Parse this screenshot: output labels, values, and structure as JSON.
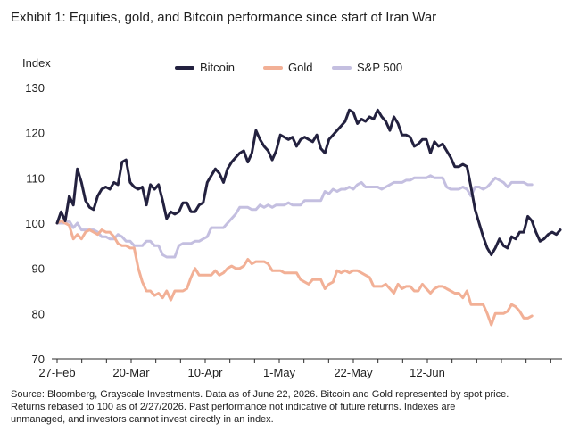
{
  "chart_data": {
    "type": "line",
    "title": "Exhibit 1: Equities, gold, and Bitcoin performance since start of Iran War",
    "ylabel": "Index",
    "xlabel": "",
    "ylim": [
      70,
      130
    ],
    "yticks": [
      70,
      80,
      90,
      100,
      110,
      120,
      130
    ],
    "xticks": [
      "27-Feb",
      "20-Mar",
      "10-Apr",
      "1-May",
      "22-May",
      "12-Jun"
    ],
    "x_start_label": "27-Feb",
    "legend_position": "top",
    "grid": false,
    "series": [
      {
        "name": "Bitcoin",
        "color": "#23213f",
        "values": [
          100,
          102.5,
          100.5,
          106,
          104,
          112,
          109,
          105,
          103.5,
          103,
          106,
          107.5,
          108,
          107.5,
          109,
          108.5,
          113.5,
          114,
          109,
          108,
          107.5,
          108,
          104,
          108.5,
          107.5,
          108.5,
          105,
          101,
          102.5,
          102,
          102.5,
          104.5,
          104.5,
          102.5,
          102.5,
          104,
          104.5,
          109,
          110.5,
          112,
          111,
          109,
          112,
          113.5,
          114.5,
          115.5,
          116,
          113.5,
          115.5,
          120.5,
          118.5,
          117,
          116,
          114,
          116,
          119.5,
          119,
          118.5,
          119,
          117,
          118.5,
          119,
          118.5,
          118,
          119.5,
          116.5,
          115.5,
          118.5,
          119.5,
          120.5,
          121.5,
          122.5,
          125,
          124.5,
          122,
          123,
          122.5,
          123.5,
          123,
          125,
          123.5,
          122.5,
          120.5,
          123.5,
          122,
          119.5,
          119.5,
          119,
          117,
          117.5,
          118.5,
          118.5,
          115.5,
          118,
          117,
          117.5,
          116,
          114.5,
          112.5,
          112.5,
          113,
          112.5,
          108,
          103,
          100,
          97,
          94.5,
          93,
          94.5,
          96.5,
          95,
          94.5,
          97,
          96.5,
          98,
          98,
          101.5,
          100.5,
          98,
          96,
          96.5,
          97.5,
          98,
          97.5,
          98.5
        ]
      },
      {
        "name": "Gold",
        "color": "#f2b096",
        "values": [
          100,
          100.5,
          100,
          99.5,
          96.5,
          97.5,
          96.5,
          98,
          98.5,
          98,
          97.5,
          98.5,
          98,
          98,
          97,
          95.5,
          95,
          95,
          94.5,
          94.5,
          90,
          87,
          85,
          85,
          84,
          84.5,
          83.5,
          85,
          83,
          85,
          85,
          85,
          85.5,
          88,
          90,
          88.5,
          88.5,
          88.5,
          88.5,
          89.5,
          88.5,
          89,
          90,
          90.5,
          90,
          90,
          90.5,
          92,
          91,
          91.5,
          91.5,
          91.5,
          91,
          89.5,
          89.5,
          89.5,
          89,
          89,
          89,
          89,
          87.5,
          87,
          86.5,
          87.5,
          87.5,
          87.5,
          85.5,
          86.5,
          87,
          89.5,
          89,
          89.5,
          89,
          89.5,
          89.5,
          89,
          88.5,
          88,
          86,
          86,
          86,
          86.5,
          85.5,
          84.5,
          86.5,
          85.5,
          86,
          86,
          85,
          85,
          86.5,
          85.5,
          84.5,
          85.5,
          86,
          86,
          85.5,
          85,
          84.5,
          84.5,
          83.5,
          85,
          82,
          82,
          82,
          82,
          80,
          77.5,
          80,
          80,
          80,
          80.5,
          82,
          81.5,
          80.5,
          79,
          79,
          79.5
        ]
      },
      {
        "name": "S&P 500",
        "color": "#c4bfe0",
        "values": [
          100,
          100,
          100,
          100.5,
          99,
          100,
          98.5,
          98.5,
          98.5,
          98.5,
          98,
          97,
          97,
          96.5,
          96.5,
          97.5,
          97,
          96,
          96,
          95,
          95,
          95,
          96,
          96,
          95,
          95,
          93,
          92.5,
          92.5,
          92.5,
          95,
          95.5,
          95.5,
          95.5,
          96,
          96,
          96.5,
          97,
          99,
          99,
          99,
          99,
          100,
          101,
          102,
          103.5,
          103.5,
          103.5,
          103,
          103,
          104,
          103.5,
          104,
          103.5,
          104,
          104,
          104,
          104.5,
          104,
          104,
          104,
          105,
          105,
          105,
          105,
          105,
          107,
          106.5,
          107.5,
          107,
          107.5,
          107.5,
          108,
          107.5,
          108.5,
          109,
          108,
          108,
          108,
          108,
          107.5,
          108,
          108.5,
          109,
          109,
          109,
          109.5,
          109.5,
          110,
          110,
          110,
          110,
          110.5,
          110,
          110,
          110,
          108,
          107.5,
          107.5,
          107.5,
          108,
          107.5,
          106,
          108,
          108,
          107.5,
          108,
          109,
          110,
          109.5,
          109,
          108,
          109,
          109,
          109,
          109,
          108.5,
          108.5
        ]
      }
    ],
    "source": [
      "Source: Bloomberg, Grayscale Investments. Data as of June 22, 2026. Bitcoin and Gold represented by spot price.",
      "Returns rebased to 100 as of 2/27/2026. Past performance not indicative of future returns. Indexes are",
      "unmanaged, and investors cannot invest directly in an index."
    ]
  }
}
